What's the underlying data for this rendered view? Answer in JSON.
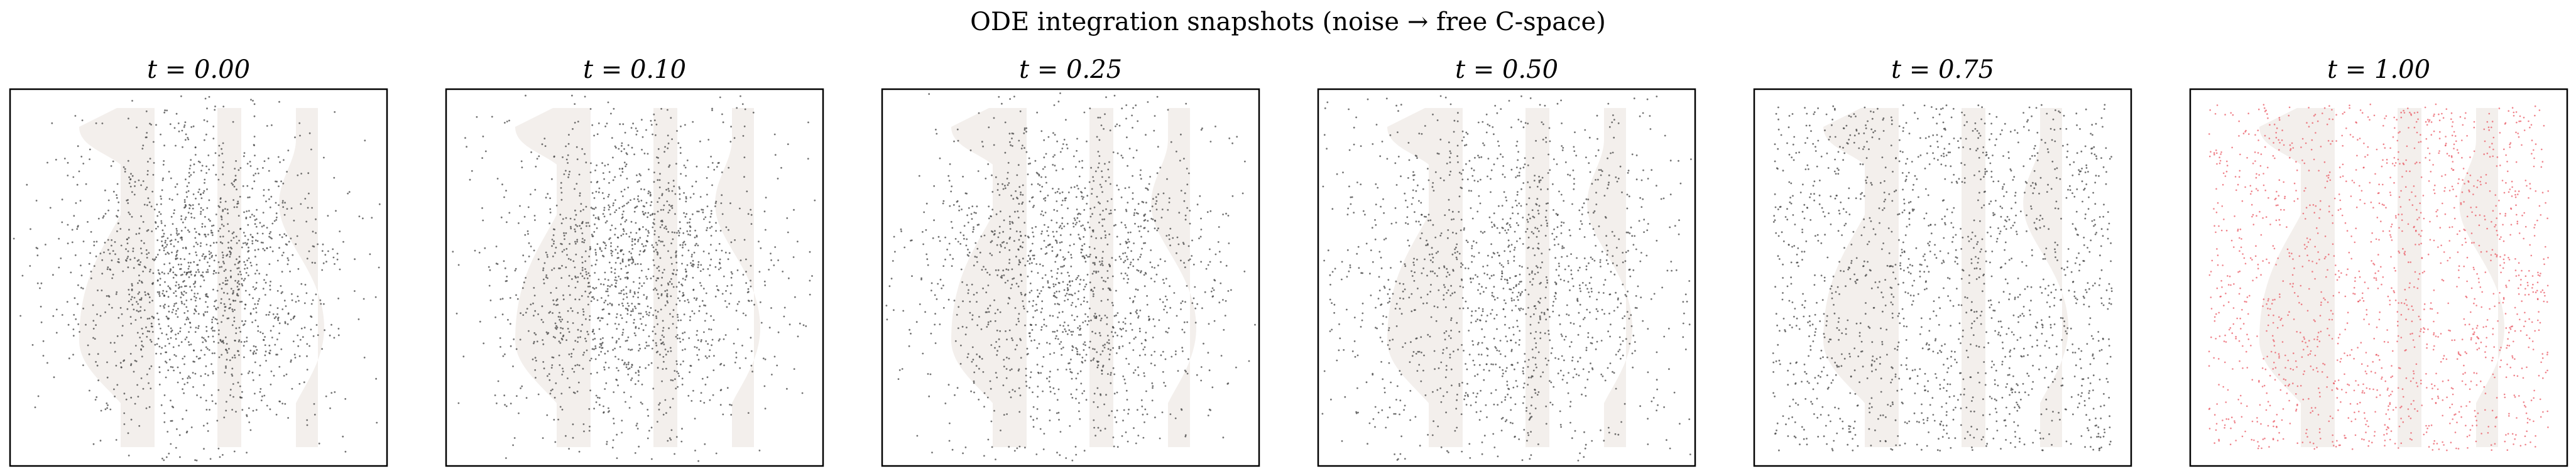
{
  "figure": {
    "title": "ODE integration snapshots (noise → free C-space)"
  },
  "colors": {
    "obstacle": "#f3efec",
    "point_dark": "#444444",
    "point_final": "#e8505b",
    "frame": "#000000"
  },
  "chart_data": [
    {
      "type": "scatter",
      "title": "t = 0.00",
      "t": 0.0,
      "xlim": [
        0,
        1
      ],
      "ylim": [
        0,
        1
      ],
      "grid": false,
      "point_color": "dark",
      "approx_points": 1600,
      "distribution": "gaussian"
    },
    {
      "type": "scatter",
      "title": "t = 0.10",
      "t": 0.1,
      "xlim": [
        0,
        1
      ],
      "ylim": [
        0,
        1
      ],
      "grid": false,
      "point_color": "dark",
      "approx_points": 1600,
      "distribution": "gaussian"
    },
    {
      "type": "scatter",
      "title": "t = 0.25",
      "t": 0.25,
      "xlim": [
        0,
        1
      ],
      "ylim": [
        0,
        1
      ],
      "grid": false,
      "point_color": "dark",
      "approx_points": 1600,
      "distribution": "gaussian"
    },
    {
      "type": "scatter",
      "title": "t = 0.50",
      "t": 0.5,
      "xlim": [
        0,
        1
      ],
      "ylim": [
        0,
        1
      ],
      "grid": false,
      "point_color": "dark",
      "approx_points": 1600,
      "distribution": "gaussian"
    },
    {
      "type": "scatter",
      "title": "t = 0.75",
      "t": 0.75,
      "xlim": [
        0,
        1
      ],
      "ylim": [
        0,
        1
      ],
      "grid": false,
      "point_color": "dark",
      "approx_points": 1600,
      "distribution": "free-space"
    },
    {
      "type": "scatter",
      "title": "t = 1.00",
      "t": 1.0,
      "xlim": [
        0,
        1
      ],
      "ylim": [
        0,
        1
      ],
      "grid": false,
      "point_color": "final",
      "approx_points": 1600,
      "distribution": "free-space"
    }
  ]
}
